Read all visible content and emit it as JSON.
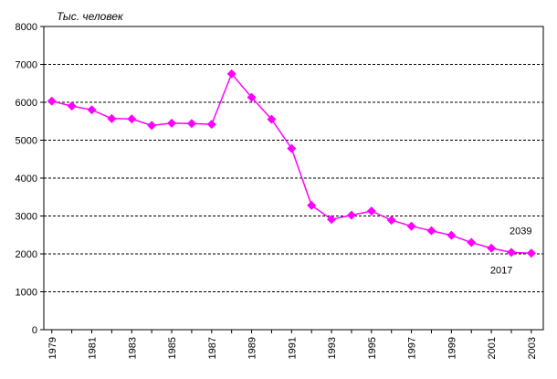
{
  "chart_data": {
    "type": "line",
    "ylabel": "Тыс. человек",
    "ylim": [
      0,
      8000
    ],
    "y_ticks": [
      0,
      1000,
      2000,
      3000,
      4000,
      5000,
      6000,
      7000,
      8000
    ],
    "x_tick_labels": [
      "1979",
      "1981",
      "1983",
      "1985",
      "1987",
      "1989",
      "1991",
      "1993",
      "1995",
      "1997",
      "1999",
      "2001",
      "2003"
    ],
    "grid": true,
    "series": [
      {
        "color": "#ff00ff",
        "marker": "diamond",
        "x": [
          1979,
          1980,
          1981,
          1982,
          1983,
          1984,
          1985,
          1986,
          1987,
          1988,
          1989,
          1990,
          1991,
          1992,
          1993,
          1994,
          1995,
          1996,
          1997,
          1998,
          1999,
          2000,
          2001,
          2002,
          2003
        ],
        "values": [
          6030,
          5900,
          5800,
          5570,
          5560,
          5390,
          5450,
          5440,
          5420,
          6750,
          6130,
          5550,
          4780,
          3280,
          2910,
          3020,
          3130,
          2890,
          2730,
          2610,
          2490,
          2300,
          2150,
          2039,
          2017
        ]
      }
    ],
    "annotations": [
      {
        "text": "2039",
        "x": 2002
      },
      {
        "text": "2017",
        "x": 2003
      }
    ]
  }
}
